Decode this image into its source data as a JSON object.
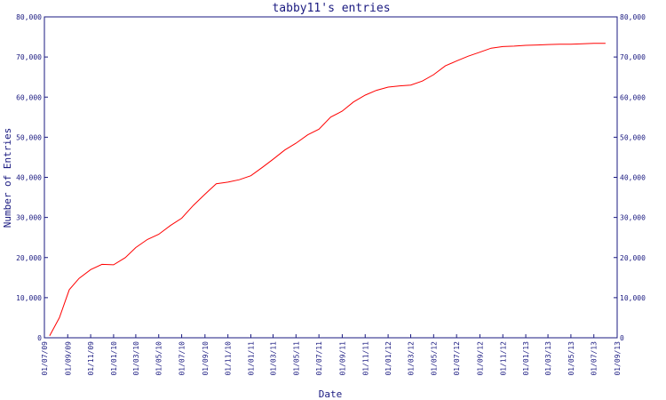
{
  "chart_data": {
    "type": "line",
    "title": "tabby11's entries",
    "xlabel": "Date",
    "ylabel": "Number of Entries",
    "ylim": [
      0,
      80000
    ],
    "yticks": [
      0,
      10000,
      20000,
      30000,
      40000,
      50000,
      60000,
      70000,
      80000
    ],
    "ytick_labels": [
      "0",
      "10,000",
      "20,000",
      "30,000",
      "40,000",
      "50,000",
      "60,000",
      "70,000",
      "80,000"
    ],
    "xlim": [
      "2009-07-01",
      "2013-09-01"
    ],
    "xticks": [
      "2009-07-01",
      "2009-09-01",
      "2009-11-01",
      "2010-01-01",
      "2010-03-01",
      "2010-05-01",
      "2010-07-01",
      "2010-09-01",
      "2010-11-01",
      "2011-01-01",
      "2011-03-01",
      "2011-05-01",
      "2011-07-01",
      "2011-09-01",
      "2011-11-01",
      "2012-01-01",
      "2012-03-01",
      "2012-05-01",
      "2012-07-01",
      "2012-09-01",
      "2012-11-01",
      "2013-01-01",
      "2013-03-01",
      "2013-05-01",
      "2013-07-01",
      "2013-09-01"
    ],
    "xtick_labels": [
      "01/07/09",
      "01/09/09",
      "01/11/09",
      "01/01/10",
      "01/03/10",
      "01/05/10",
      "01/07/10",
      "01/09/10",
      "01/11/10",
      "01/01/11",
      "01/03/11",
      "01/05/11",
      "01/07/11",
      "01/09/11",
      "01/11/11",
      "01/01/12",
      "01/03/12",
      "01/05/12",
      "01/07/12",
      "01/09/12",
      "01/11/12",
      "01/01/13",
      "01/03/13",
      "01/05/13",
      "01/07/13",
      "01/09/13"
    ],
    "grid": false,
    "series": [
      {
        "color": "#ff0000",
        "x": [
          "2009-07-15",
          "2009-08-10",
          "2009-09-05",
          "2009-10-01",
          "2009-11-01",
          "2009-12-01",
          "2010-01-01",
          "2010-02-01",
          "2010-03-01",
          "2010-04-01",
          "2010-05-01",
          "2010-06-01",
          "2010-07-01",
          "2010-08-01",
          "2010-09-01",
          "2010-10-01",
          "2010-11-01",
          "2010-12-01",
          "2011-01-01",
          "2011-02-01",
          "2011-03-01",
          "2011-04-01",
          "2011-05-01",
          "2011-06-01",
          "2011-07-01",
          "2011-08-01",
          "2011-09-01",
          "2011-10-01",
          "2011-11-01",
          "2011-12-01",
          "2012-01-01",
          "2012-02-01",
          "2012-03-01",
          "2012-04-01",
          "2012-05-01",
          "2012-06-01",
          "2012-07-01",
          "2012-08-01",
          "2012-09-01",
          "2012-10-01",
          "2012-11-01",
          "2012-12-01",
          "2013-01-01",
          "2013-02-01",
          "2013-03-01",
          "2013-04-01",
          "2013-05-01",
          "2013-06-01",
          "2013-07-01",
          "2013-08-01"
        ],
        "y": [
          500,
          5000,
          12000,
          14800,
          17000,
          18300,
          18200,
          20000,
          22500,
          24500,
          25800,
          28000,
          29800,
          33000,
          35800,
          38400,
          38800,
          39400,
          40400,
          42500,
          44500,
          46800,
          48500,
          50600,
          52000,
          55000,
          56500,
          58800,
          60500,
          61700,
          62500,
          62800,
          63000,
          64000,
          65600,
          67800,
          69000,
          70200,
          71200,
          72200,
          72600,
          72700,
          72900,
          73000,
          73100,
          73200,
          73200,
          73300,
          73400,
          73400
        ]
      }
    ]
  }
}
